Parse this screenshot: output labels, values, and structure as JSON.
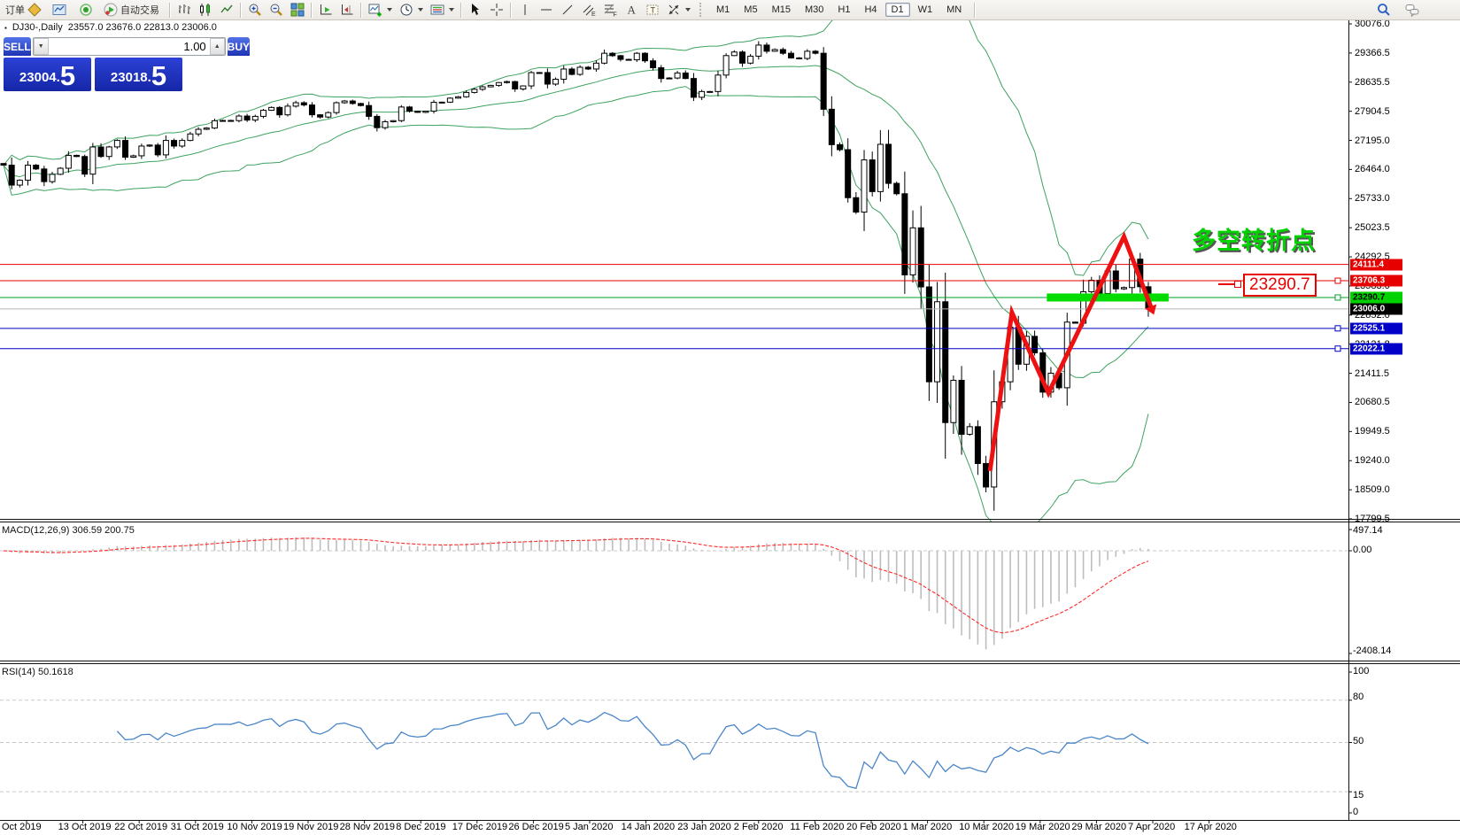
{
  "toolbar": {
    "new_order_label": "订单",
    "autotrading_label": "自动交易",
    "standalone_icons": [
      "charts-icon",
      "signal-icon"
    ],
    "icon_groups": [
      [
        "bars-chart-icon",
        "candlestick-chart-icon",
        "line-chart-icon"
      ],
      [
        "zoom-in-icon",
        "zoom-out-icon",
        "tile-windows-icon"
      ],
      [
        "auto-scroll-icon",
        "chart-shift-icon"
      ],
      [
        "indicators-icon",
        "periods-icon",
        "template-icon"
      ],
      [
        "cursor-icon",
        "crosshair-icon"
      ],
      [
        "vertical-line-icon",
        "horizontal-line-icon",
        "trendline-icon",
        "channel-icon",
        "fibonacci-icon",
        "text-icon",
        "text-label-icon",
        "shapes-icon"
      ]
    ],
    "dropdown_icons": [
      "indicators-icon",
      "periods-icon",
      "template-icon",
      "shapes-icon"
    ],
    "right_icons": [
      "search-icon",
      "chat-icon"
    ],
    "timeframes": [
      "M1",
      "M5",
      "M15",
      "M30",
      "H1",
      "H4",
      "D1",
      "W1",
      "MN"
    ],
    "active_timeframe": "D1"
  },
  "chart_title": {
    "symbol": "DJ30-,Daily",
    "values": "23557.0 23676.0 22813.0 23006.0"
  },
  "trade_widget": {
    "sell_label": "SELL",
    "buy_label": "BUY",
    "volume": "1.00",
    "sell_price": {
      "main": "23004.",
      "big": "5"
    },
    "buy_price": {
      "main": "23018.",
      "big": "5"
    }
  },
  "annotations": {
    "turning_point": {
      "text": "多空转折点",
      "color": "#00d400"
    },
    "price_callout": {
      "text": "23290.7",
      "color": "#e60000"
    }
  },
  "indicator_labels": {
    "macd": "MACD(12,26,9) 306.59 200.75",
    "rsi": "RSI(14) 50.1618"
  },
  "price_axis": {
    "ticks": [
      "30076.0",
      "29366.5",
      "28635.5",
      "27904.5",
      "27195.0",
      "26464.0",
      "25733.0",
      "25023.5",
      "24292.5",
      "23583.0",
      "22852.0",
      "22121.8",
      "21411.5",
      "20680.5",
      "19949.5",
      "19240.0",
      "18509.0",
      "17799.5"
    ],
    "badges": [
      {
        "value": "24111.4",
        "price": 24111.4,
        "bg": "#e60000",
        "fg": "#ffffff"
      },
      {
        "value": "23706.3",
        "price": 23706.3,
        "bg": "#e60000",
        "fg": "#ffffff"
      },
      {
        "value": "23290.7",
        "price": 23290.7,
        "bg": "#00d200",
        "fg": "#000000"
      },
      {
        "value": "23006.0",
        "price": 23006.0,
        "bg": "#000000",
        "fg": "#ffffff"
      },
      {
        "value": "22525.1",
        "price": 22525.1,
        "bg": "#0000c8",
        "fg": "#ffffff"
      },
      {
        "value": "22022.1",
        "price": 22022.1,
        "bg": "#0000c8",
        "fg": "#ffffff"
      }
    ]
  },
  "macd_axis": [
    "497.14",
    "0.00",
    "-2408.14"
  ],
  "rsi_axis": [
    "100",
    "80",
    "50",
    "15",
    "0"
  ],
  "chart_data": {
    "type": "candlestick",
    "symbol": "DJ30-",
    "timeframe": "Daily",
    "title": "DJ30-,Daily 23557.0 23676.0 22813.0 23006.0",
    "y_range": {
      "top": 30076.0,
      "bottom": 17799.5
    },
    "last_candle": {
      "open": 23557.0,
      "high": 23676.0,
      "low": 22813.0,
      "close": 23006.0
    },
    "closes": [
      26573,
      26078,
      26201,
      26573,
      26478,
      26164,
      26346,
      26496,
      26816,
      26787,
      26350,
      27024,
      26788,
      27025,
      27186,
      26770,
      26805,
      27046,
      27071,
      26828,
      27186,
      27046,
      27186,
      27347,
      27462,
      27493,
      27674,
      27681,
      27677,
      27791,
      27691,
      27783,
      27934,
      28004,
      27821,
      28036,
      28121,
      28066,
      27822,
      27766,
      27876,
      28121,
      28164,
      28102,
      28051,
      27783,
      27502,
      27650,
      27677,
      28015,
      27910,
      27882,
      27912,
      28132,
      28135,
      28235,
      28268,
      28376,
      28455,
      28515,
      28552,
      28621,
      28645,
      28462,
      28538,
      28868,
      28869,
      28583,
      28704,
      28957,
      28824,
      29001,
      28957,
      29103,
      29348,
      29288,
      29196,
      29186,
      29348,
      29160,
      28989,
      28722,
      28734,
      28859,
      28722,
      28256,
      28399,
      28399,
      28807,
      29290,
      29379,
      29103,
      29276,
      29551,
      29398,
      29440,
      29348,
      29232,
      29219,
      29398,
      29348,
      27960,
      27081,
      26957,
      25766,
      25409,
      26703,
      25917,
      27090,
      26121,
      25864,
      23851,
      25018,
      23553,
      21200,
      23185,
      20188,
      21237,
      19898,
      20087,
      19173,
      18591,
      20704,
      21200,
      22552,
      21636,
      22327,
      21917,
      20943,
      21413,
      21052,
      22680,
      22653,
      23433,
      23719,
      23390,
      23949,
      23504,
      23537,
      24242,
      23557,
      23006
    ],
    "x_labels": [
      "Oct 2019",
      "13 Oct 2019",
      "22 Oct 2019",
      "31 Oct 2019",
      "10 Nov 2019",
      "19 Nov 2019",
      "28 Nov 2019",
      "8 Dec 2019",
      "17 Dec 2019",
      "26 Dec 2019",
      "5 Jan 2020",
      "14 Jan 2020",
      "23 Jan 2020",
      "2 Feb 2020",
      "11 Feb 2020",
      "20 Feb 2020",
      "1 Mar 2020",
      "10 Mar 2020",
      "19 Mar 2020",
      "29 Mar 2020",
      "7 Apr 2020",
      "17 Apr 2020"
    ],
    "levels": [
      {
        "price": 24111.4,
        "color": "#e60000",
        "handle": false
      },
      {
        "price": 23706.3,
        "color": "#e60000",
        "handle": true
      },
      {
        "price": 23290.7,
        "color": "#00a22a",
        "handle": true
      },
      {
        "price": 23006.0,
        "color": "#b4b4b4",
        "handle": false
      },
      {
        "price": 22525.1,
        "color": "#0000c8",
        "handle": true
      },
      {
        "price": 22022.1,
        "color": "#0000c8",
        "handle": true
      }
    ],
    "highlight_bar": {
      "from_index": 128.5,
      "to_index": 143.5,
      "price": 23290.7,
      "color": "#00dc00",
      "thickness": 9
    },
    "zigzag": {
      "color": "#ee1111",
      "width": 5,
      "points": [
        [
          121.5,
          18990
        ],
        [
          124.2,
          22920
        ],
        [
          128.7,
          20920
        ],
        [
          138.0,
          24800
        ],
        [
          141.3,
          23070
        ]
      ]
    },
    "indicators": {
      "bollinger": {
        "period": 20,
        "deviation": 2,
        "color": "#3da35f"
      },
      "macd": {
        "fast": 12,
        "slow": 26,
        "signal": 9,
        "main_value": 306.59,
        "signal_value": 200.75,
        "scale": {
          "top": 497.14,
          "zero": 0.0,
          "bottom": -2408.14
        },
        "histogram_color": "#bdbdbd",
        "signal_color": "#ff2a2a"
      },
      "rsi": {
        "period": 14,
        "value": 50.1618,
        "levels": [
          80,
          50,
          15
        ],
        "color": "#4a86c8",
        "range": [
          0,
          100
        ]
      }
    }
  }
}
